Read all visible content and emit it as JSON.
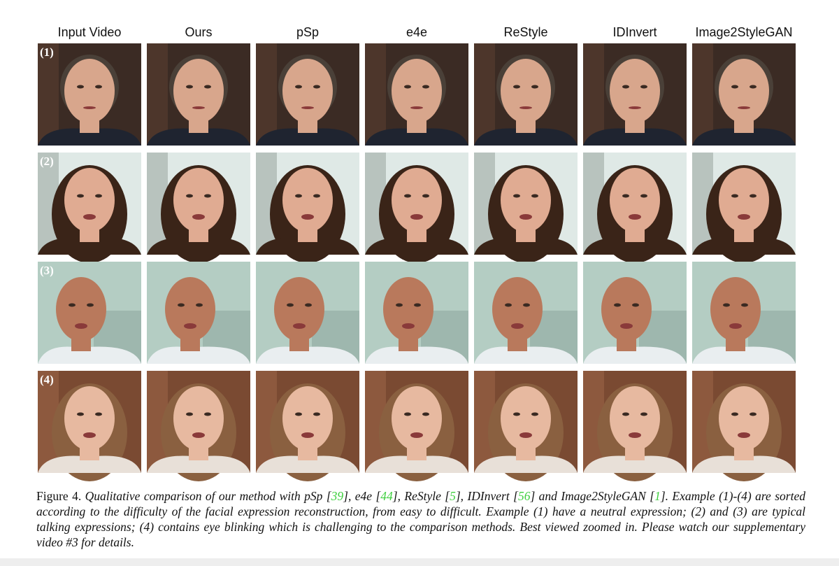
{
  "figure": {
    "columns": [
      "Input Video",
      "Ours",
      "pSp",
      "e4e",
      "ReStyle",
      "IDInvert",
      "Image2StyleGAN"
    ],
    "rows": [
      "(1)",
      "(2)",
      "(3)",
      "(4)"
    ],
    "caption": {
      "label": "Figure 4.",
      "parts": [
        "Qualitative comparison of our method with pSp [",
        "39",
        "], e4e [",
        "44",
        "], ReStyle [",
        "5",
        "], IDInvert [",
        "56",
        "] and Image2StyleGAN [",
        "1",
        "]. Example (1)-(4) are sorted according to the difficulty of the facial expression reconstruction, from easy to difficult. Example (1) have a neutral expression; (2) and (3) are typical talking expressions; (4) contains eye blinking which is challenging to the comparison methods. Best viewed zoomed in. Please watch our supplementary video #3 for details."
      ]
    }
  }
}
